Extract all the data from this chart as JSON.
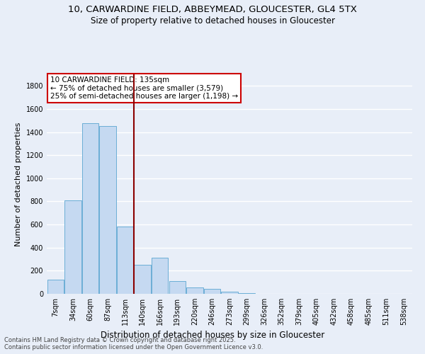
{
  "title": "10, CARWARDINE FIELD, ABBEYMEAD, GLOUCESTER, GL4 5TX",
  "subtitle": "Size of property relative to detached houses in Gloucester",
  "xlabel": "Distribution of detached houses by size in Gloucester",
  "ylabel": "Number of detached properties",
  "bar_labels": [
    "7sqm",
    "34sqm",
    "60sqm",
    "87sqm",
    "113sqm",
    "140sqm",
    "166sqm",
    "193sqm",
    "220sqm",
    "246sqm",
    "273sqm",
    "299sqm",
    "326sqm",
    "352sqm",
    "379sqm",
    "405sqm",
    "432sqm",
    "458sqm",
    "485sqm",
    "511sqm",
    "538sqm"
  ],
  "bar_values": [
    120,
    810,
    1480,
    1450,
    580,
    250,
    310,
    110,
    55,
    40,
    20,
    5,
    0,
    0,
    0,
    0,
    0,
    0,
    0,
    0,
    0
  ],
  "bar_color": "#c5d9f1",
  "bar_edge_color": "#6baed6",
  "vline_x": 5.0,
  "vline_color": "#8b0000",
  "annotation_text": "10 CARWARDINE FIELD: 135sqm\n← 75% of detached houses are smaller (3,579)\n25% of semi-detached houses are larger (1,198) →",
  "annotation_box_color": "#ffffff",
  "annotation_border_color": "#cc0000",
  "ylim": [
    0,
    1900
  ],
  "yticks": [
    0,
    200,
    400,
    600,
    800,
    1000,
    1200,
    1400,
    1600,
    1800
  ],
  "footer_line1": "Contains HM Land Registry data © Crown copyright and database right 2025.",
  "footer_line2": "Contains public sector information licensed under the Open Government Licence v3.0.",
  "bg_color": "#e8eef8",
  "grid_color": "#ffffff",
  "title_fontsize": 9.5,
  "subtitle_fontsize": 8.5,
  "tick_fontsize": 7,
  "ylabel_fontsize": 8,
  "xlabel_fontsize": 8.5
}
